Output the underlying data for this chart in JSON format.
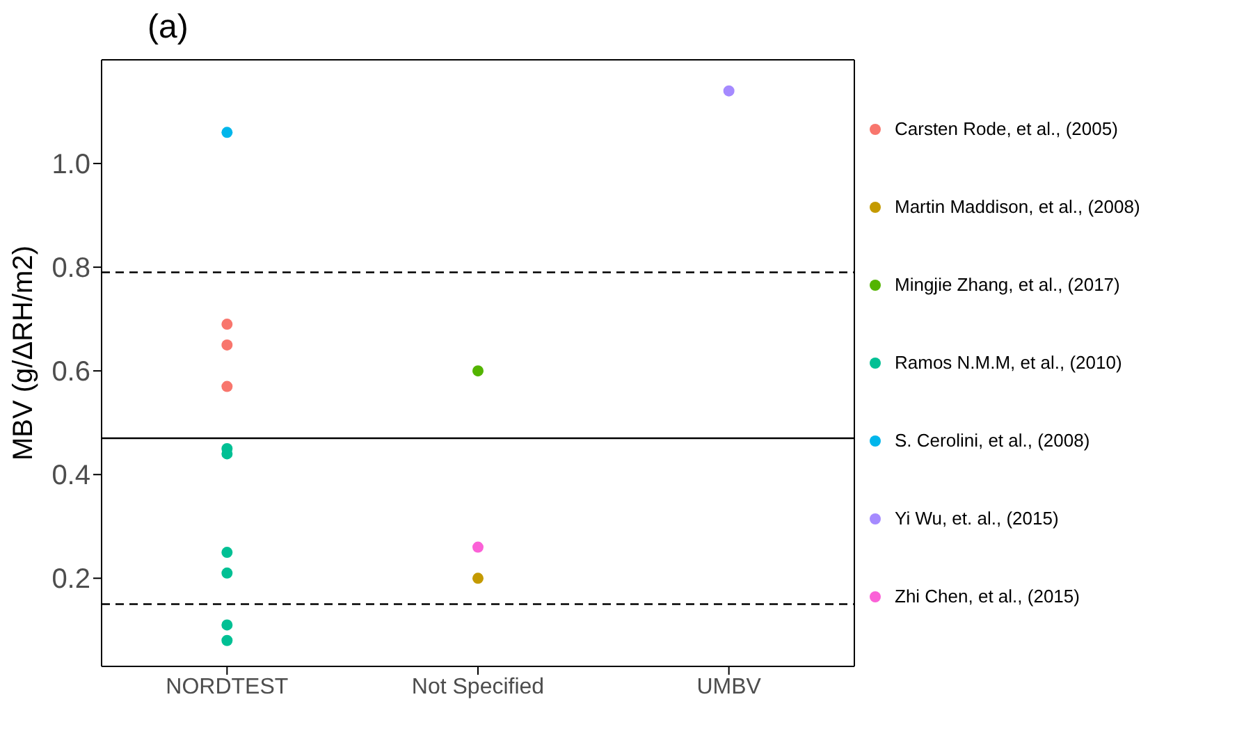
{
  "chart_data": {
    "type": "scatter",
    "title": "(a)",
    "ylabel": "MBV (g/ΔRH/m2)",
    "categories": [
      "NORDTEST",
      "Not Specified",
      "UMBV"
    ],
    "series": [
      {
        "name": "Carsten Rode, et al., (2005)",
        "color": "#f8766d",
        "x": [
          "NORDTEST",
          "NORDTEST",
          "NORDTEST"
        ],
        "values": [
          0.69,
          0.65,
          0.57
        ]
      },
      {
        "name": "Martin Maddison, et al., (2008)",
        "color": "#c49a00",
        "x": [
          "Not Specified"
        ],
        "values": [
          0.2
        ]
      },
      {
        "name": "Mingjie Zhang, et al., (2017)",
        "color": "#53b400",
        "x": [
          "Not Specified"
        ],
        "values": [
          0.6
        ]
      },
      {
        "name": "Ramos N.M.M, et al., (2010)",
        "color": "#00c094",
        "x": [
          "NORDTEST",
          "NORDTEST",
          "NORDTEST",
          "NORDTEST",
          "NORDTEST",
          "NORDTEST"
        ],
        "values": [
          0.45,
          0.44,
          0.25,
          0.21,
          0.11,
          0.08
        ]
      },
      {
        "name": "S. Cerolini, et al., (2008)",
        "color": "#00b6eb",
        "x": [
          "NORDTEST"
        ],
        "values": [
          1.06
        ]
      },
      {
        "name": "Yi Wu, et. al., (2015)",
        "color": "#a58aff",
        "x": [
          "UMBV"
        ],
        "values": [
          1.14
        ]
      },
      {
        "name": "Zhi Chen, et al., (2015)",
        "color": "#fb61d7",
        "x": [
          "Not Specified"
        ],
        "values": [
          0.26
        ]
      }
    ],
    "ylim": [
      0.03,
      1.2
    ],
    "yticks": [
      {
        "value": 0.2,
        "label": "0.2"
      },
      {
        "value": 0.4,
        "label": "0.4"
      },
      {
        "value": 0.6,
        "label": "0.6"
      },
      {
        "value": 0.8,
        "label": "0.8"
      },
      {
        "value": 1.0,
        "label": "1.0"
      }
    ],
    "ref_lines": [
      {
        "axis": "y",
        "value": 0.79,
        "line_style": "dashed"
      },
      {
        "axis": "y",
        "value": 0.47,
        "line_style": "solid"
      },
      {
        "axis": "y",
        "value": 0.15,
        "line_style": "dashed"
      }
    ],
    "legend": "right",
    "marker": "circle"
  }
}
